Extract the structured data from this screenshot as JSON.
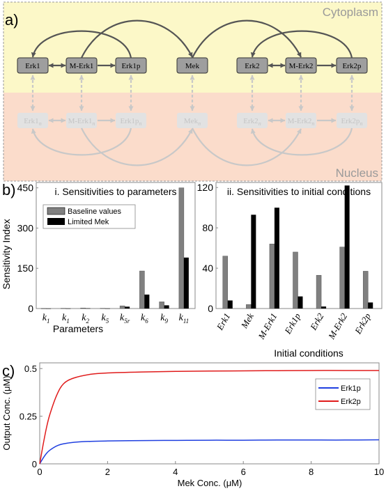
{
  "panel_labels": {
    "a": "a)",
    "b": "b)",
    "c": "c)"
  },
  "compartments": {
    "cytoplasm": {
      "label": "Cytoplasm",
      "color": "#fcf8c8"
    },
    "nucleus": {
      "label": "Nucleus",
      "color": "#fbdccb"
    }
  },
  "colors": {
    "node_fill": "#9e9e9e",
    "node_fill_faded": "#e2e2e2",
    "arrow": "#555555",
    "arrow_faded": "#c8c8c8",
    "node_text_faded": "#c4c4c4",
    "bar_baseline": "#808080",
    "bar_limited": "#000000",
    "line_erk1p": "#1f3fe0",
    "line_erk2p": "#e01b1b"
  },
  "cyto_nodes": [
    {
      "id": "erk1",
      "label": "Erk1"
    },
    {
      "id": "merk1",
      "label": "M-Erk1"
    },
    {
      "id": "erk1p",
      "label": "Erk1p"
    },
    {
      "id": "mek",
      "label": "Mek"
    },
    {
      "id": "erk2",
      "label": "Erk2"
    },
    {
      "id": "merk2",
      "label": "M-Erk2"
    },
    {
      "id": "erk2p",
      "label": "Erk2p"
    }
  ],
  "nuc_nodes": [
    {
      "id": "erk1n",
      "base": "Erk1",
      "sub": "n"
    },
    {
      "id": "merk1n",
      "base": "M-Erk1",
      "sub": "n"
    },
    {
      "id": "erk1pn",
      "base": "Erk1p",
      "sub": "n"
    },
    {
      "id": "mekn",
      "base": "Mek",
      "sub": "n"
    },
    {
      "id": "erk2n",
      "base": "Erk2",
      "sub": "n"
    },
    {
      "id": "merk2n",
      "base": "M-Erk2",
      "sub": "n"
    },
    {
      "id": "erk2pn",
      "base": "Erk2p",
      "sub": "n"
    }
  ],
  "chart_data": [
    {
      "type": "bar",
      "title": "i. Sensitivities to parameters",
      "xlabel": "Parameters",
      "ylabel": "Sensitivity Index",
      "ylim": [
        0,
        470
      ],
      "yticks": [
        0,
        150,
        300,
        450
      ],
      "categories": [
        {
          "base": "k",
          "sub": "1"
        },
        {
          "base": "k",
          "sub": "1"
        },
        {
          "base": "k",
          "sub": "2"
        },
        {
          "base": "k",
          "sub": "5"
        },
        {
          "base": "k",
          "sub": "5r"
        },
        {
          "base": "k",
          "sub": "6"
        },
        {
          "base": "k",
          "sub": "9"
        },
        {
          "base": "k",
          "sub": "11"
        }
      ],
      "series": [
        {
          "name": "Baseline values",
          "values": [
            0.5,
            1,
            2,
            1,
            10,
            140,
            25,
            450
          ]
        },
        {
          "name": "Limited Mek",
          "values": [
            0.3,
            0.5,
            1,
            0.5,
            7,
            52,
            12,
            190
          ]
        }
      ],
      "legend": "top-left"
    },
    {
      "type": "bar",
      "title": "ii. Sensitivities to initial conditions",
      "xlabel": "Initial conditions",
      "ylabel": "",
      "ylim": [
        0,
        125
      ],
      "yticks": [
        0,
        40,
        80,
        120
      ],
      "categories": [
        "Erk1",
        "Mek",
        "M-Erk1",
        "Erk1p",
        "Erk2",
        "M-Erk2",
        "Erk2p"
      ],
      "series": [
        {
          "values": [
            52,
            4,
            64,
            56,
            33,
            61,
            37
          ]
        },
        {
          "values": [
            8,
            93,
            100,
            12,
            2,
            122,
            6
          ]
        }
      ]
    },
    {
      "type": "line",
      "xlabel": "Mek Conc. (μM)",
      "ylabel": "Output Conc. (μM)",
      "xlim": [
        0,
        10
      ],
      "ylim": [
        0,
        0.53
      ],
      "xticks": [
        0,
        2,
        4,
        6,
        8,
        10
      ],
      "yticks": [
        0,
        0.25,
        0.5
      ],
      "series": [
        {
          "name": "Erk1p",
          "x": [
            0,
            0.1,
            0.2,
            0.3,
            0.5,
            0.7,
            1,
            1.5,
            2,
            3,
            4,
            5,
            6,
            7,
            8,
            9,
            10
          ],
          "y": [
            0,
            0.03,
            0.055,
            0.072,
            0.094,
            0.105,
            0.113,
            0.118,
            0.12,
            0.122,
            0.123,
            0.124,
            0.124,
            0.125,
            0.125,
            0.125,
            0.126
          ]
        },
        {
          "name": "Erk2p",
          "x": [
            0,
            0.1,
            0.2,
            0.3,
            0.5,
            0.7,
            1,
            1.5,
            2,
            3,
            4,
            5,
            6,
            7,
            8,
            9,
            10
          ],
          "y": [
            0,
            0.1,
            0.19,
            0.26,
            0.36,
            0.42,
            0.45,
            0.47,
            0.477,
            0.482,
            0.485,
            0.487,
            0.488,
            0.489,
            0.49,
            0.49,
            0.49
          ]
        }
      ],
      "legend": "top-right"
    }
  ]
}
